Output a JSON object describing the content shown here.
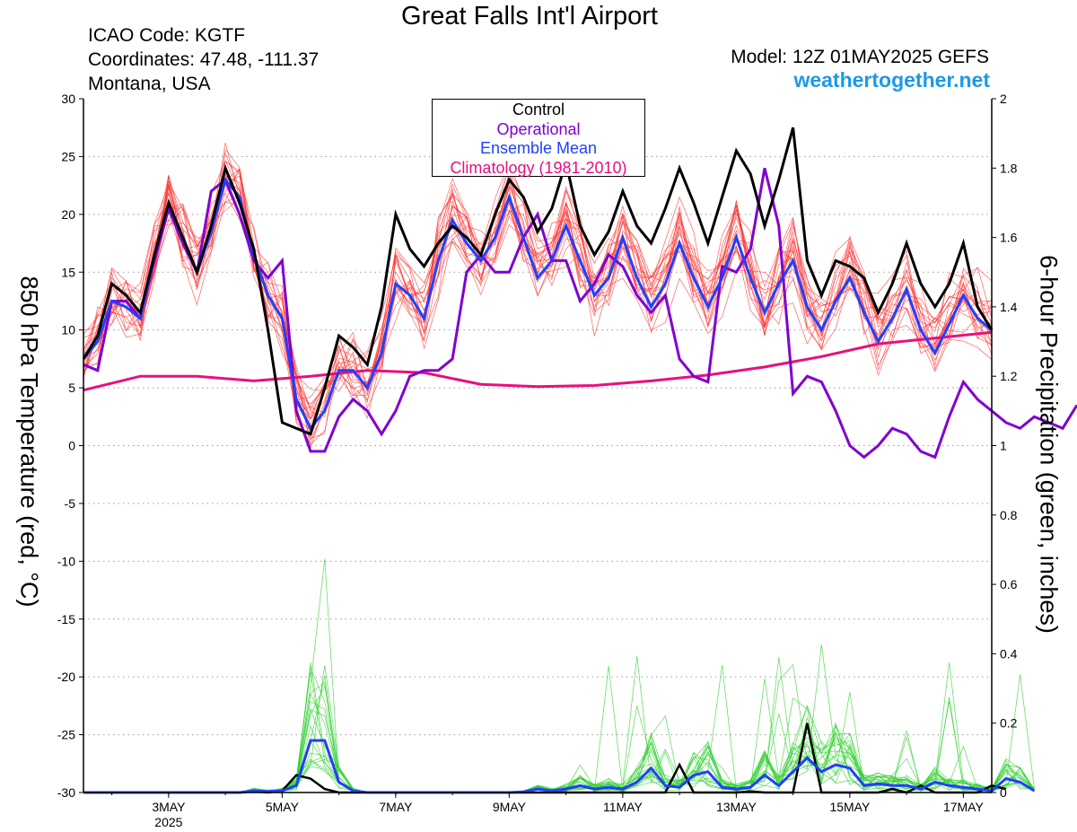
{
  "header": {
    "title": "Great Falls Int'l Airport",
    "icao": "ICAO Code: KGTF",
    "coordinates": "Coordinates: 47.48, -111.37",
    "region": "Montana, USA",
    "model": "Model: 12Z 01MAY2025 GEFS",
    "site": "weathertogether.net"
  },
  "colors": {
    "control": "#000000",
    "operational": "#8000d0",
    "ensemble_mean": "#2040ff",
    "climatology": "#e8107c",
    "ensemble_temperature": "#ff3030",
    "ensemble_precipitation": "#30d030",
    "site": "#1a9ae8"
  },
  "chart_data": {
    "type": "line",
    "ylabel": "850 hPa Temperature (red, °C)",
    "y2label": "6-hour Precipitation (green, inches)",
    "ylim": [
      -30,
      30
    ],
    "y2lim": [
      0,
      2
    ],
    "yticks": [
      "30",
      "25",
      "20",
      "15",
      "10",
      "5",
      "0",
      "-5",
      "-10",
      "-15",
      "-20",
      "-25",
      "-30"
    ],
    "y2ticks": [
      "2",
      "1.8",
      "1.6",
      "1.4",
      "1.2",
      "1",
      "0.8",
      "0.6",
      "0.4",
      "0.2",
      "0"
    ],
    "xticks": [
      {
        "label": "3MAY",
        "sub": "2025",
        "day": 3
      },
      {
        "label": "5MAY",
        "sub": "",
        "day": 5
      },
      {
        "label": "7MAY",
        "sub": "",
        "day": 7
      },
      {
        "label": "9MAY",
        "sub": "",
        "day": 9
      },
      {
        "label": "11MAY",
        "sub": "",
        "day": 11
      },
      {
        "label": "13MAY",
        "sub": "",
        "day": 13
      },
      {
        "label": "15MAY",
        "sub": "",
        "day": 15
      },
      {
        "label": "17MAY",
        "sub": "",
        "day": 17
      }
    ],
    "xlim": [
      1.5,
      17.5
    ],
    "grid": "horizontal dotted",
    "legend": {
      "position": "top-center",
      "entries": [
        "Control",
        "Operational",
        "Ensemble Mean",
        "Climatology (1981-2010)"
      ]
    },
    "series": [
      {
        "name": "Control",
        "axis": "left",
        "values": [
          7.5,
          9.5,
          14,
          13,
          11.5,
          16.5,
          21,
          18,
          15,
          19,
          24,
          21,
          17,
          10,
          2,
          1.5,
          1,
          5,
          9.5,
          8.5,
          7,
          12,
          20,
          17,
          15.5,
          17.5,
          19,
          18,
          16.5,
          20,
          23,
          21.5,
          18.5,
          20.5,
          24.5,
          19,
          16.5,
          18.5,
          22,
          19,
          17.5,
          20.5,
          24,
          21,
          17.5,
          21.5,
          25.5,
          23.5,
          19,
          23,
          27.5,
          16,
          13,
          16,
          15.5,
          14.5,
          11.5,
          14,
          17.5,
          14,
          12,
          14,
          17.5,
          12,
          10
        ]
      },
      {
        "name": "Operational",
        "axis": "left",
        "values": [
          7,
          6.5,
          12.5,
          12.5,
          11,
          16,
          20.5,
          17.5,
          15,
          22,
          23,
          20,
          16,
          14.5,
          16,
          3,
          -0.5,
          -0.5,
          2.5,
          4,
          3,
          1,
          3,
          6,
          6.5,
          6.5,
          7.5,
          15,
          16.5,
          15,
          15,
          18,
          20,
          16,
          16,
          12.5,
          14,
          16.5,
          15.5,
          13,
          11.5,
          13,
          7.5,
          6,
          5.5,
          15.5,
          15,
          17,
          24,
          19,
          4.5,
          6,
          5.5,
          3,
          0,
          -1,
          0,
          1.5,
          1,
          -0.5,
          -1,
          2.5,
          5.5,
          4,
          3,
          2,
          1.5,
          2.5,
          2,
          1.5,
          3.5
        ]
      },
      {
        "name": "Ensemble Mean",
        "axis": "left",
        "values": [
          7.5,
          9,
          12.5,
          12,
          11,
          16.5,
          21,
          18,
          15,
          18.5,
          23,
          21.5,
          16.5,
          13,
          11,
          4,
          1.5,
          3,
          6.5,
          6.5,
          5,
          8,
          14,
          13,
          11,
          16,
          19.5,
          17.5,
          16,
          18,
          21.5,
          18,
          14.5,
          16,
          19,
          16,
          13,
          14.5,
          18,
          14.5,
          12,
          14,
          17.5,
          14.5,
          12,
          14.5,
          18,
          14.5,
          11.5,
          14,
          16,
          12,
          10,
          12.5,
          14.5,
          11.5,
          9,
          11,
          13.5,
          10,
          8,
          10.5,
          13,
          11,
          10
        ]
      },
      {
        "name": "Climatology (1981-2010)",
        "axis": "left",
        "x": [
          1.5,
          2.5,
          3.5,
          4.5,
          5.5,
          6.5,
          7.5,
          8.5,
          9.5,
          10.5,
          11.5,
          12.5,
          13.5,
          14.5,
          15.5,
          16.5,
          17.5
        ],
        "values": [
          4.8,
          6,
          6,
          5.6,
          6,
          6.5,
          6.3,
          5.3,
          5.1,
          5.2,
          5.6,
          6.1,
          6.8,
          7.7,
          8.8,
          9.3,
          9.8
        ]
      },
      {
        "name": "Control",
        "axis": "right",
        "kind": "precipitation",
        "values": [
          0,
          0,
          0,
          0,
          0,
          0,
          0,
          0,
          0,
          0,
          0,
          0,
          0.003,
          0,
          0.005,
          0.05,
          0.04,
          0.01,
          0,
          0,
          0,
          0,
          0,
          0,
          0,
          0,
          0,
          0,
          0,
          0,
          0,
          0,
          0,
          0,
          0,
          0,
          0,
          0,
          0,
          0,
          0,
          0,
          0.08,
          0,
          0,
          0,
          0,
          0.003,
          0,
          0,
          0,
          0.2,
          0,
          0,
          0,
          0,
          0,
          0.01,
          0,
          0.02,
          0,
          0,
          0,
          0,
          0.02,
          0.01
        ]
      },
      {
        "name": "Ensemble Mean",
        "axis": "right",
        "kind": "precipitation",
        "values": [
          0,
          0,
          0,
          0,
          0,
          0,
          0,
          0,
          0,
          0,
          0,
          0,
          0.005,
          0.003,
          0.005,
          0.02,
          0.15,
          0.15,
          0.03,
          0.005,
          0,
          0,
          0,
          0,
          0,
          0,
          0,
          0,
          0,
          0,
          0,
          0.002,
          0.01,
          0.005,
          0.01,
          0.02,
          0.01,
          0.015,
          0.01,
          0.03,
          0.07,
          0.02,
          0.015,
          0.05,
          0.06,
          0.015,
          0.01,
          0.015,
          0.05,
          0.02,
          0.06,
          0.1,
          0.06,
          0.08,
          0.07,
          0.02,
          0.025,
          0.02,
          0.02,
          0.01,
          0.03,
          0.02,
          0.015,
          0.01,
          0.005,
          0.04,
          0.03,
          0.005
        ]
      }
    ]
  }
}
